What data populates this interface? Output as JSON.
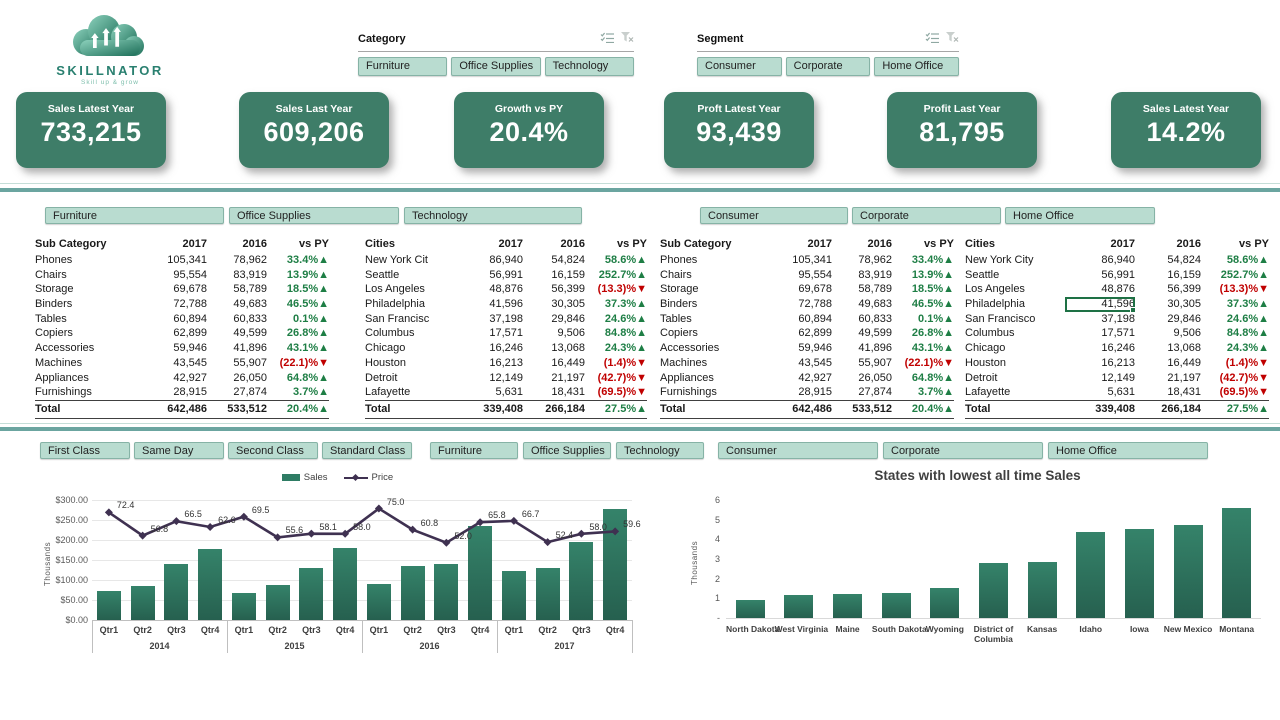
{
  "logo": {
    "brand": "SKILLNATOR",
    "tagline": "Skill up & grow"
  },
  "top_slicers": [
    {
      "title": "Category",
      "buttons": [
        "Furniture",
        "Office Supplies",
        "Technology"
      ],
      "icons": [
        "multiselect-icon",
        "clear-filter-icon"
      ]
    },
    {
      "title": "Segment",
      "buttons": [
        "Consumer",
        "Corporate",
        "Home Office"
      ],
      "icons": [
        "multiselect-icon",
        "clear-filter-icon"
      ]
    }
  ],
  "kpis": [
    {
      "label": "Sales Latest Year",
      "value": "733,215"
    },
    {
      "label": "Sales Last Year",
      "value": "609,206"
    },
    {
      "label": "Growth vs PY",
      "value": "20.4%"
    },
    {
      "label": "Proft Latest Year",
      "value": "93,439"
    },
    {
      "label": "Profit Last Year",
      "value": "81,795"
    },
    {
      "label": "Sales Latest Year",
      "value": "14.2%"
    }
  ],
  "mid_section": {
    "left_slicer_buttons": [
      "Furniture",
      "Office Supplies",
      "Technology"
    ],
    "right_slicer_buttons": [
      "Consumer",
      "Corporate",
      "Home Office"
    ],
    "tables": [
      {
        "name": "subcategory-table-left",
        "headers": [
          "Sub Category",
          "2017",
          "2016",
          "vs PY"
        ],
        "rows": [
          [
            "Phones",
            "105,341",
            "78,962",
            "33.4%",
            "up"
          ],
          [
            "Chairs",
            "95,554",
            "83,919",
            "13.9%",
            "up"
          ],
          [
            "Storage",
            "69,678",
            "58,789",
            "18.5%",
            "up"
          ],
          [
            "Binders",
            "72,788",
            "49,683",
            "46.5%",
            "up"
          ],
          [
            "Tables",
            "60,894",
            "60,833",
            "0.1%",
            "up"
          ],
          [
            "Copiers",
            "62,899",
            "49,599",
            "26.8%",
            "up"
          ],
          [
            "Accessories",
            "59,946",
            "41,896",
            "43.1%",
            "up"
          ],
          [
            "Machines",
            "43,545",
            "55,907",
            "(22.1)%",
            "down"
          ],
          [
            "Appliances",
            "42,927",
            "26,050",
            "64.8%",
            "up"
          ],
          [
            "Furnishings",
            "28,915",
            "27,874",
            "3.7%",
            "up"
          ]
        ],
        "total": [
          "Total",
          "642,486",
          "533,512",
          "20.4%",
          "up"
        ]
      },
      {
        "name": "cities-table-left",
        "headers": [
          "Cities",
          "2017",
          "2016",
          "vs PY"
        ],
        "rows": [
          [
            "New York Cit",
            "86,940",
            "54,824",
            "58.6%",
            "up"
          ],
          [
            "Seattle",
            "56,991",
            "16,159",
            "252.7%",
            "up"
          ],
          [
            "Los Angeles",
            "48,876",
            "56,399",
            "(13.3)%",
            "down"
          ],
          [
            "Philadelphia",
            "41,596",
            "30,305",
            "37.3%",
            "up"
          ],
          [
            "San Francisc",
            "37,198",
            "29,846",
            "24.6%",
            "up"
          ],
          [
            "Columbus",
            "17,571",
            "9,506",
            "84.8%",
            "up"
          ],
          [
            "Chicago",
            "16,246",
            "13,068",
            "24.3%",
            "up"
          ],
          [
            "Houston",
            "16,213",
            "16,449",
            "(1.4)%",
            "down"
          ],
          [
            "Detroit",
            "12,149",
            "21,197",
            "(42.7)%",
            "down"
          ],
          [
            "Lafayette",
            "5,631",
            "18,431",
            "(69.5)%",
            "down"
          ]
        ],
        "total": [
          "Total",
          "339,408",
          "266,184",
          "27.5%",
          "up"
        ]
      },
      {
        "name": "subcategory-table-right",
        "headers": [
          "Sub Category",
          "2017",
          "2016",
          "vs PY"
        ],
        "rows": [
          [
            "Phones",
            "105,341",
            "78,962",
            "33.4%",
            "up"
          ],
          [
            "Chairs",
            "95,554",
            "83,919",
            "13.9%",
            "up"
          ],
          [
            "Storage",
            "69,678",
            "58,789",
            "18.5%",
            "up"
          ],
          [
            "Binders",
            "72,788",
            "49,683",
            "46.5%",
            "up"
          ],
          [
            "Tables",
            "60,894",
            "60,833",
            "0.1%",
            "up"
          ],
          [
            "Copiers",
            "62,899",
            "49,599",
            "26.8%",
            "up"
          ],
          [
            "Accessories",
            "59,946",
            "41,896",
            "43.1%",
            "up"
          ],
          [
            "Machines",
            "43,545",
            "55,907",
            "(22.1)%",
            "down"
          ],
          [
            "Appliances",
            "42,927",
            "26,050",
            "64.8%",
            "up"
          ],
          [
            "Furnishings",
            "28,915",
            "27,874",
            "3.7%",
            "up"
          ]
        ],
        "total": [
          "Total",
          "642,486",
          "533,512",
          "20.4%",
          "up"
        ]
      },
      {
        "name": "cities-table-right",
        "headers": [
          "Cities",
          "2017",
          "2016",
          "vs PY"
        ],
        "rows": [
          [
            "New York City",
            "86,940",
            "54,824",
            "58.6%",
            "up"
          ],
          [
            "Seattle",
            "56,991",
            "16,159",
            "252.7%",
            "up"
          ],
          [
            "Los Angeles",
            "48,876",
            "56,399",
            "(13.3)%",
            "down"
          ],
          [
            "Philadelphia",
            "41,596",
            "30,305",
            "37.3%",
            "up"
          ],
          [
            "San Francisco",
            "37,198",
            "29,846",
            "24.6%",
            "up"
          ],
          [
            "Columbus",
            "17,571",
            "9,506",
            "84.8%",
            "up"
          ],
          [
            "Chicago",
            "16,246",
            "13,068",
            "24.3%",
            "up"
          ],
          [
            "Houston",
            "16,213",
            "16,449",
            "(1.4)%",
            "down"
          ],
          [
            "Detroit",
            "12,149",
            "21,197",
            "(42.7)%",
            "down"
          ],
          [
            "Lafayette",
            "5,631",
            "18,431",
            "(69.5)%",
            "down"
          ]
        ],
        "total": [
          "Total",
          "339,408",
          "266,184",
          "27.5%",
          "up"
        ],
        "selected": {
          "row": 3,
          "col": 1
        }
      }
    ]
  },
  "bottom_slicers": [
    {
      "buttons": [
        "First Class",
        "Same Day",
        "Second Class",
        "Standard Class"
      ]
    },
    {
      "buttons": [
        "Furniture",
        "Office Supplies",
        "Technology"
      ]
    },
    {
      "buttons": [
        "Consumer",
        "Corporate",
        "Home Office"
      ]
    }
  ],
  "chart_data": [
    {
      "type": "bar",
      "subtype": "combo-bar-line",
      "legend": [
        "Sales",
        "Price"
      ],
      "ylabel": "Thousands",
      "yticks": [
        "$300.00",
        "$250.00",
        "$200.00",
        "$150.00",
        "$100.00",
        "$50.00",
        "$0.00"
      ],
      "ylim": [
        0,
        300
      ],
      "years": [
        "2014",
        "2015",
        "2016",
        "2017"
      ],
      "quarters": [
        "Qtr1",
        "Qtr2",
        "Qtr3",
        "Qtr4"
      ],
      "legend_position": "top",
      "grid": true,
      "series": [
        {
          "name": "Sales",
          "type": "bar",
          "values": [
            72,
            86,
            141,
            177,
            67,
            88,
            131,
            181,
            91,
            134,
            141,
            236,
            122,
            131,
            194,
            278
          ]
        },
        {
          "name": "Price",
          "type": "line",
          "values": [
            72.4,
            56.8,
            66.5,
            62.6,
            69.5,
            55.6,
            58.1,
            58.0,
            75.0,
            60.8,
            52.0,
            65.8,
            66.7,
            52.4,
            58.0,
            59.6
          ]
        }
      ]
    },
    {
      "type": "bar",
      "title": "States with lowest all time Sales",
      "ylabel": "Thousands",
      "ylim": [
        0,
        6
      ],
      "yticks": [
        "6",
        "5",
        "4",
        "3",
        "2",
        "1",
        "-"
      ],
      "grid": false,
      "legend_position": "none",
      "categories": [
        "North Dakota",
        "West Virginia",
        "Maine",
        "South Dakota",
        "Wyoming",
        "District of Columbia",
        "Kansas",
        "Idaho",
        "Iowa",
        "New Mexico",
        "Montana"
      ],
      "values": [
        0.9,
        1.15,
        1.2,
        1.25,
        1.55,
        2.8,
        2.85,
        4.35,
        4.55,
        4.75,
        5.6
      ]
    }
  ],
  "colors": {
    "kpi_green": "#3E7D68",
    "slicer_fill": "#B9DCD0",
    "slicer_border": "#86B3A6",
    "positive": "#1E7E45",
    "negative": "#C00000",
    "divider": "#6BA5A0",
    "bar_fill": "#2E7C64",
    "line_color": "#3F3151"
  }
}
